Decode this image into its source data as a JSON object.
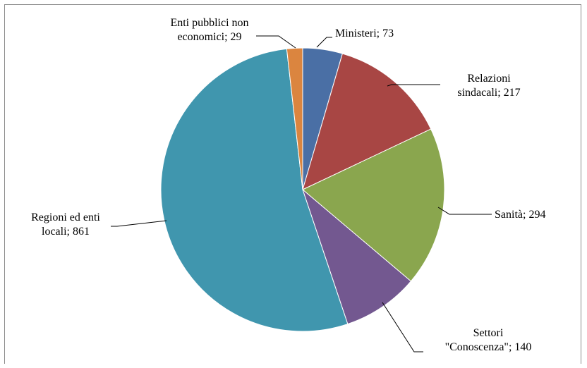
{
  "chart_data": {
    "type": "pie",
    "categories": [
      "Ministeri",
      "Relazioni sindacali",
      "Sanità",
      "Settori \"Conoscenza\"",
      "Regioni ed enti locali",
      "Enti pubblici non economici"
    ],
    "values": [
      73,
      217,
      294,
      140,
      861,
      29
    ],
    "colors": [
      "#4A6FA5",
      "#A84644",
      "#8AA64E",
      "#735890",
      "#4096AE",
      "#DB853F"
    ],
    "data_labels": [
      [
        "Ministeri; 73"
      ],
      [
        "Relazioni",
        "sindacali; 217"
      ],
      [
        "Sanità; 294"
      ],
      [
        "Settori",
        "\"Conoscenza\"; 140"
      ],
      [
        "Regioni ed enti",
        "locali; 861"
      ],
      [
        "Enti pubblici non",
        "economici; 29"
      ]
    ],
    "start_angle": "12 o'clock",
    "direction": "clockwise",
    "legend": "none"
  }
}
